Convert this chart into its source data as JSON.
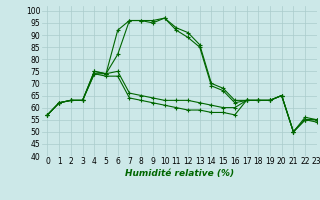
{
  "title": "",
  "xlabel": "Humidité relative (%)",
  "ylabel": "",
  "bg_color": "#cce8e8",
  "grid_color": "#aacccc",
  "line_color": "#006600",
  "xlim": [
    -0.5,
    23
  ],
  "ylim": [
    40,
    102
  ],
  "xticks": [
    0,
    1,
    2,
    3,
    4,
    5,
    6,
    7,
    8,
    9,
    10,
    11,
    12,
    13,
    14,
    15,
    16,
    17,
    18,
    19,
    20,
    21,
    22,
    23
  ],
  "yticks": [
    40,
    45,
    50,
    55,
    60,
    65,
    70,
    75,
    80,
    85,
    90,
    95,
    100
  ],
  "series": [
    [
      57,
      62,
      63,
      63,
      75,
      74,
      92,
      96,
      96,
      96,
      97,
      93,
      91,
      86,
      70,
      68,
      63,
      63,
      63,
      63,
      65,
      50,
      56,
      55
    ],
    [
      57,
      62,
      63,
      63,
      74,
      74,
      82,
      96,
      96,
      95,
      97,
      92,
      89,
      85,
      69,
      67,
      62,
      63,
      63,
      63,
      65,
      50,
      55,
      55
    ],
    [
      57,
      62,
      63,
      63,
      75,
      74,
      75,
      66,
      65,
      64,
      63,
      63,
      63,
      62,
      61,
      60,
      60,
      63,
      63,
      63,
      65,
      50,
      55,
      55
    ],
    [
      57,
      62,
      63,
      63,
      74,
      73,
      73,
      64,
      63,
      62,
      61,
      60,
      59,
      59,
      58,
      58,
      57,
      63,
      63,
      63,
      65,
      50,
      55,
      54
    ]
  ],
  "tick_fontsize": 5.5,
  "xlabel_fontsize": 6.5
}
